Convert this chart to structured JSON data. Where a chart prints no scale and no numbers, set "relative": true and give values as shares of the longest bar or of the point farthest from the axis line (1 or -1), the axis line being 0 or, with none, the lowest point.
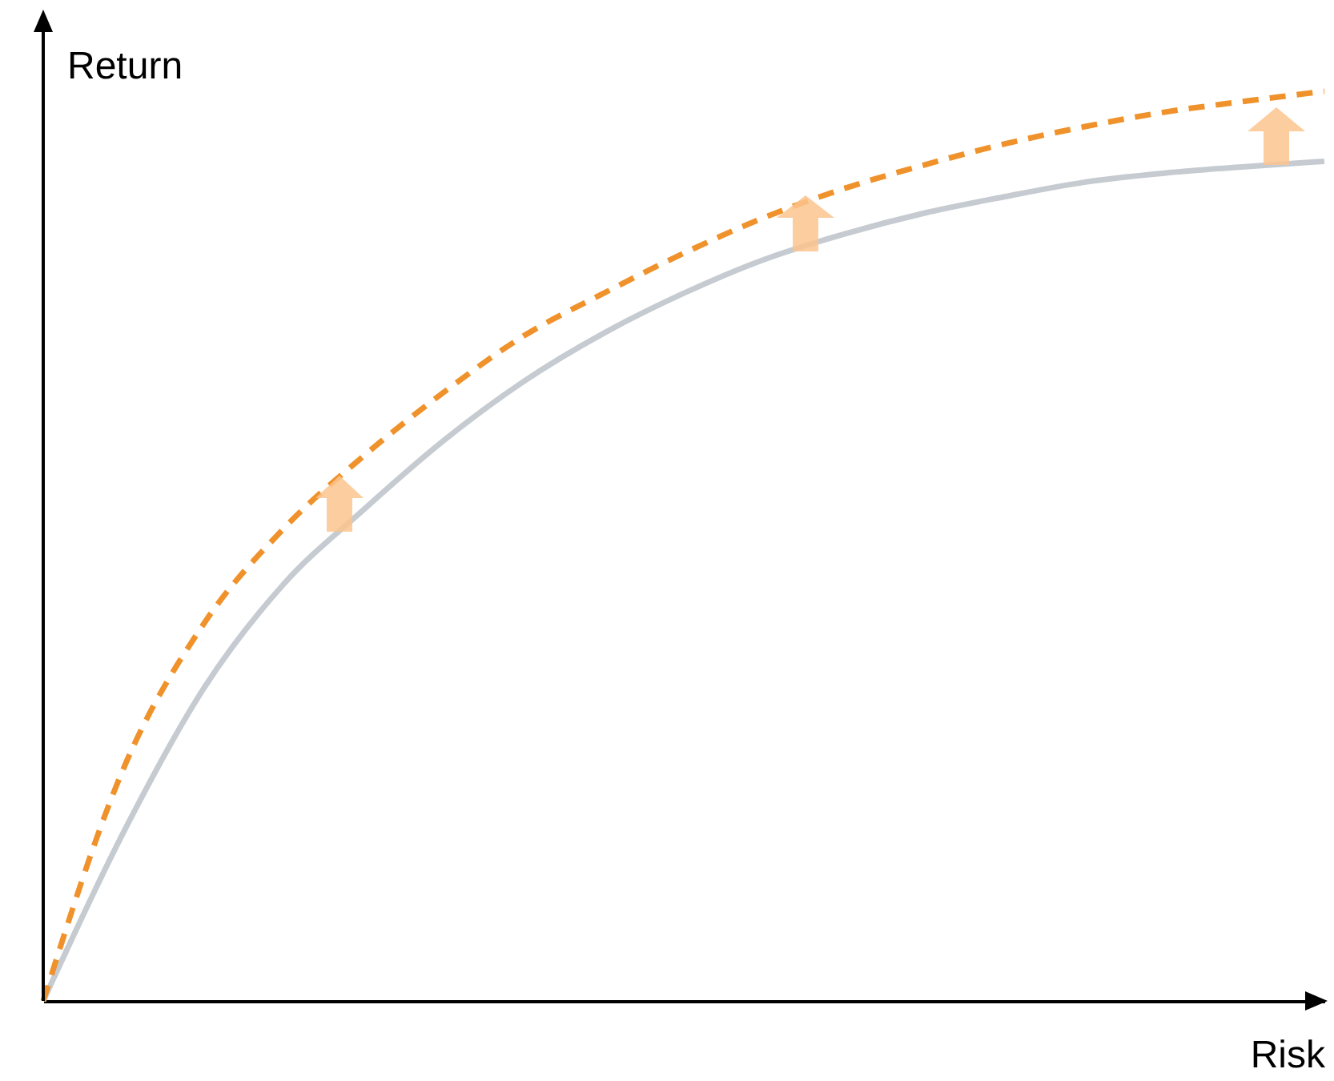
{
  "chart_data": {
    "type": "line",
    "relative": true,
    "xlabel": "Risk",
    "ylabel": "Return",
    "grid": false,
    "marker": "none",
    "categories": [
      null,
      null,
      null,
      null,
      null,
      null,
      null,
      null,
      null,
      null,
      null,
      null,
      null,
      null,
      null,
      null,
      null
    ],
    "series": [
      {
        "color": "#c5cbd0",
        "line_style": "solid",
        "values": [
          0,
          0.185,
          0.343,
          0.458,
          0.54,
          0.616,
          0.681,
          0.734,
          0.778,
          0.815,
          0.843,
          0.866,
          0.884,
          0.9,
          0.91,
          0.917,
          0.923
        ]
      },
      {
        "color": "#f0922b",
        "line_style": "dashed",
        "values": [
          0,
          0.255,
          0.414,
          0.519,
          0.599,
          0.669,
          0.731,
          0.778,
          0.822,
          0.861,
          0.893,
          0.919,
          0.942,
          0.961,
          0.977,
          0.989,
          1
        ]
      }
    ]
  }
}
